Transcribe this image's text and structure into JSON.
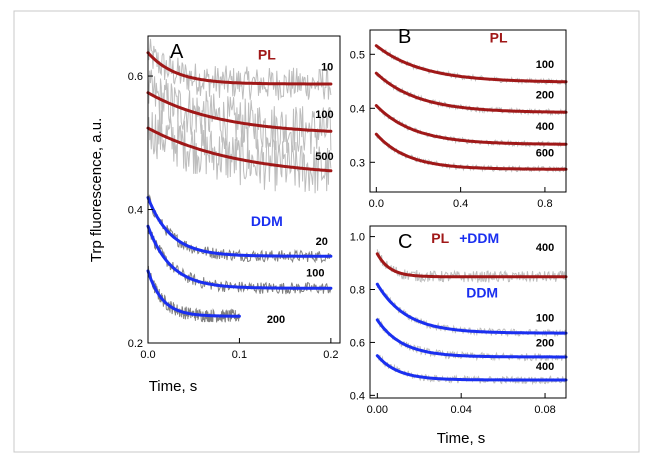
{
  "colors": {
    "pl": "#a01818",
    "ddm": "#1a2ff0",
    "raw_light": "#bdbdbd",
    "raw_dark": "#808080",
    "frame": "#c8c8c8"
  },
  "chart_data": [
    {
      "panel": "A",
      "type": "line",
      "xlabel": "Time, s",
      "ylabel": "Trp fluorescence, a.u.",
      "xlim": [
        0,
        0.21
      ],
      "ylim": [
        0.2,
        0.66
      ],
      "xticks": [
        "0.0",
        "0.1",
        "0.2"
      ],
      "yticks": [
        "0.2",
        "0.4",
        "0.6"
      ],
      "groups": [
        {
          "label": "PL",
          "color_key": "pl",
          "pos": [
            0.13,
            0.625
          ]
        },
        {
          "label": "DDM",
          "color_key": "ddm",
          "pos": [
            0.13,
            0.375
          ]
        }
      ],
      "series": [
        {
          "label": "10",
          "group": "PL",
          "x_end": 0.2,
          "start": 0.635,
          "end": 0.588,
          "tau": 0.03,
          "noise": 0.025,
          "raw": "light",
          "label_pos": [
            0.196,
            0.608
          ]
        },
        {
          "label": "100",
          "group": "PL",
          "x_end": 0.2,
          "start": 0.575,
          "end": 0.512,
          "tau": 0.08,
          "noise": 0.038,
          "raw": "light",
          "label_pos": [
            0.193,
            0.537
          ]
        },
        {
          "label": "500",
          "group": "PL",
          "x_end": 0.2,
          "start": 0.522,
          "end": 0.448,
          "tau": 0.1,
          "noise": 0.04,
          "raw": "light",
          "label_pos": [
            0.193,
            0.474
          ]
        },
        {
          "label": "20",
          "group": "DDM",
          "x_end": 0.2,
          "start": 0.418,
          "end": 0.33,
          "tau": 0.025,
          "noise": 0.009,
          "raw": "dark",
          "label_pos": [
            0.19,
            0.347
          ]
        },
        {
          "label": "100",
          "group": "DDM",
          "x_end": 0.2,
          "start": 0.375,
          "end": 0.282,
          "tau": 0.025,
          "noise": 0.009,
          "raw": "dark",
          "label_pos": [
            0.183,
            0.3
          ]
        },
        {
          "label": "200",
          "group": "DDM",
          "x_end": 0.1,
          "start": 0.308,
          "end": 0.24,
          "tau": 0.016,
          "noise": 0.01,
          "raw": "dark",
          "label_pos": [
            0.14,
            0.23
          ]
        }
      ]
    },
    {
      "panel": "B",
      "type": "line",
      "xlabel": "",
      "ylabel": "",
      "xlim": [
        -0.03,
        0.9
      ],
      "ylim": [
        0.245,
        0.545
      ],
      "xticks": [
        "0.0",
        "0.4",
        "0.8"
      ],
      "yticks": [
        "0.3",
        "0.4",
        "0.5"
      ],
      "groups": [
        {
          "label": "PL",
          "color_key": "pl",
          "pos": [
            0.58,
            0.522
          ]
        }
      ],
      "series": [
        {
          "label": "100",
          "group": "PL",
          "x_end": 0.9,
          "start": 0.516,
          "end": 0.448,
          "tau": 0.22,
          "noise": 0.005,
          "raw": "light",
          "label_pos": [
            0.8,
            0.475
          ]
        },
        {
          "label": "200",
          "group": "PL",
          "x_end": 0.9,
          "start": 0.465,
          "end": 0.392,
          "tau": 0.2,
          "noise": 0.005,
          "raw": "light",
          "label_pos": [
            0.8,
            0.418
          ]
        },
        {
          "label": "400",
          "group": "PL",
          "x_end": 0.9,
          "start": 0.405,
          "end": 0.333,
          "tau": 0.18,
          "noise": 0.005,
          "raw": "light",
          "label_pos": [
            0.8,
            0.36
          ]
        },
        {
          "label": "600",
          "group": "PL",
          "x_end": 0.9,
          "start": 0.352,
          "end": 0.287,
          "tau": 0.15,
          "noise": 0.005,
          "raw": "light",
          "label_pos": [
            0.8,
            0.311
          ]
        }
      ]
    },
    {
      "panel": "C",
      "type": "line",
      "xlabel": "Time, s",
      "ylabel": "",
      "xlim": [
        -0.0035,
        0.09
      ],
      "ylim": [
        0.39,
        1.04
      ],
      "xticks": [
        "0.00",
        "0.04",
        "0.08"
      ],
      "yticks": [
        "0.4",
        "0.6",
        "0.8",
        "1.0"
      ],
      "groups": [
        {
          "label": "PL",
          "color_key": "pl",
          "pos": [
            0.03,
            0.975
          ]
        },
        {
          "label": "+",
          "color_key": "ddm",
          "pos": [
            0.041,
            0.975
          ]
        },
        {
          "label": "DDM",
          "color_key": "ddm",
          "pos": [
            0.0505,
            0.975
          ]
        },
        {
          "label": "DDM",
          "color_key": "ddm",
          "pos": [
            0.05,
            0.77
          ]
        }
      ],
      "series": [
        {
          "label": "400",
          "group": "PL + DDM",
          "x_end": 0.09,
          "start": 0.935,
          "end": 0.848,
          "tau": 0.006,
          "noise": 0.022,
          "raw": "light",
          "label_pos": [
            0.08,
            0.945
          ]
        },
        {
          "label": "100",
          "group": "DDM",
          "x_end": 0.09,
          "start": 0.82,
          "end": 0.635,
          "tau": 0.014,
          "noise": 0.014,
          "raw": "light",
          "label_pos": [
            0.08,
            0.68
          ]
        },
        {
          "label": "200",
          "group": "DDM",
          "x_end": 0.09,
          "start": 0.685,
          "end": 0.545,
          "tau": 0.012,
          "noise": 0.014,
          "raw": "light",
          "label_pos": [
            0.08,
            0.585
          ]
        },
        {
          "label": "400",
          "group": "DDM",
          "x_end": 0.09,
          "start": 0.55,
          "end": 0.458,
          "tau": 0.01,
          "noise": 0.014,
          "raw": "light",
          "label_pos": [
            0.08,
            0.495
          ]
        }
      ]
    }
  ]
}
